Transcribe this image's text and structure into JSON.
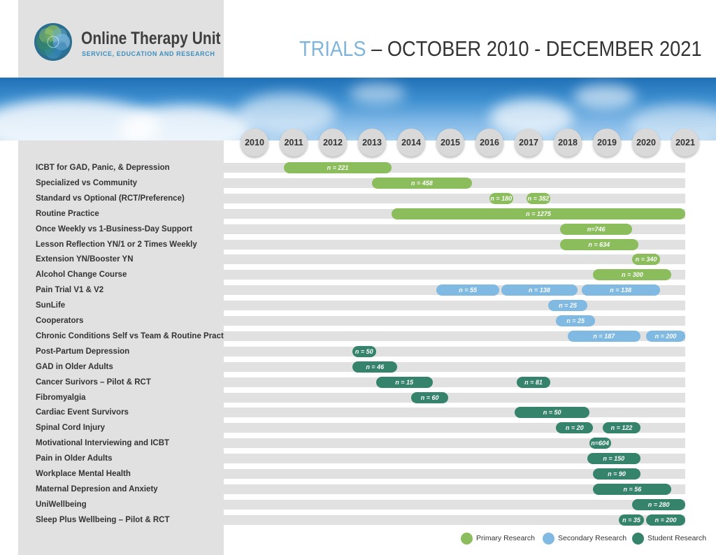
{
  "header": {
    "logo_name": "Online Therapy Unit",
    "logo_sub": "SERVICE, EDUCATION AND RESEARCH",
    "title_accent": "TRIALS",
    "title_rest": " – OCTOBER 2010 - DECEMBER 2021"
  },
  "colors": {
    "primary": "#8bbd5c",
    "secondary": "#80b9e2",
    "student": "#35836a",
    "track": "#e1e1e1",
    "title_accent": "#7fb5dd"
  },
  "chart_data": {
    "type": "gantt",
    "title": "TRIALS – OCTOBER 2010 - DECEMBER 2021",
    "x_axis": {
      "ticks": [
        2010,
        2011,
        2012,
        2013,
        2014,
        2015,
        2016,
        2017,
        2018,
        2019,
        2020,
        2021
      ],
      "range": [
        2010,
        2021
      ]
    },
    "legend": [
      {
        "key": "primary",
        "label": "Primary Research"
      },
      {
        "key": "secondary",
        "label": "Secondary Research"
      },
      {
        "key": "student",
        "label": "Student Research"
      }
    ],
    "legend_position": "bottom-right",
    "rows": [
      {
        "label": "ICBT for GAD, Panic, & Depression",
        "bars": [
          {
            "start": 2010.75,
            "end": 2013.5,
            "n": "n = 221",
            "type": "primary"
          }
        ]
      },
      {
        "label": "Specialized vs Community",
        "bars": [
          {
            "start": 2013.0,
            "end": 2015.55,
            "n": "n = 458",
            "type": "primary"
          }
        ]
      },
      {
        "label": "Standard vs Optional (RCT/Preference)",
        "bars": [
          {
            "start": 2016.0,
            "end": 2016.6,
            "n": "n = 180",
            "type": "primary"
          },
          {
            "start": 2016.95,
            "end": 2017.55,
            "n": "n = 382",
            "type": "primary"
          }
        ]
      },
      {
        "label": "Routine Practice",
        "bars": [
          {
            "start": 2013.5,
            "end": 2021.0,
            "n": "n = 1275",
            "type": "primary"
          }
        ]
      },
      {
        "label": "Once Weekly vs 1-Business-Day Support",
        "bars": [
          {
            "start": 2017.8,
            "end": 2019.65,
            "n": "n=746",
            "type": "primary"
          }
        ]
      },
      {
        "label": "Lesson Reflection YN/1 or 2 Times Weekly",
        "bars": [
          {
            "start": 2017.8,
            "end": 2019.8,
            "n": "n = 634",
            "type": "primary"
          }
        ]
      },
      {
        "label": "Extension YN/Booster YN",
        "bars": [
          {
            "start": 2019.65,
            "end": 2020.35,
            "n": "n = 340",
            "type": "primary"
          }
        ]
      },
      {
        "label": "Alcohol Change Course",
        "bars": [
          {
            "start": 2018.65,
            "end": 2020.65,
            "n": "n = 300",
            "type": "primary"
          }
        ]
      },
      {
        "label": "Pain Trial V1 & V2",
        "bars": [
          {
            "start": 2014.65,
            "end": 2016.25,
            "n": "n = 55",
            "type": "secondary"
          },
          {
            "start": 2016.3,
            "end": 2018.25,
            "n": "n = 138",
            "type": "secondary"
          },
          {
            "start": 2018.35,
            "end": 2020.35,
            "n": "n = 138",
            "type": "secondary"
          }
        ]
      },
      {
        "label": "SunLife",
        "bars": [
          {
            "start": 2017.5,
            "end": 2018.5,
            "n": "n = 25",
            "type": "secondary"
          }
        ]
      },
      {
        "label": "Cooperators",
        "bars": [
          {
            "start": 2017.7,
            "end": 2018.7,
            "n": "n = 25",
            "type": "secondary"
          }
        ]
      },
      {
        "label": "Chronic Conditions Self vs Team & Routine Practice",
        "bars": [
          {
            "start": 2018.0,
            "end": 2019.85,
            "n": "n = 187",
            "type": "secondary"
          },
          {
            "start": 2020.0,
            "end": 2021.0,
            "n": "n = 200",
            "type": "secondary"
          }
        ]
      },
      {
        "label": "Post-Partum Depression",
        "bars": [
          {
            "start": 2012.5,
            "end": 2013.1,
            "n": "n = 50",
            "type": "student"
          }
        ]
      },
      {
        "label": "GAD in Older Adults",
        "bars": [
          {
            "start": 2012.5,
            "end": 2013.65,
            "n": "n = 46",
            "type": "student"
          }
        ]
      },
      {
        "label": "Cancer Surivors – Pilot & RCT",
        "bars": [
          {
            "start": 2013.1,
            "end": 2014.55,
            "n": "n = 15",
            "type": "student"
          },
          {
            "start": 2016.7,
            "end": 2017.55,
            "n": "n = 81",
            "type": "student"
          }
        ]
      },
      {
        "label": "Fibromyalgia",
        "bars": [
          {
            "start": 2014.0,
            "end": 2014.95,
            "n": "n = 60",
            "type": "student"
          }
        ]
      },
      {
        "label": "Cardiac Event Survivors",
        "bars": [
          {
            "start": 2016.65,
            "end": 2018.55,
            "n": "n = 50",
            "type": "student"
          }
        ]
      },
      {
        "label": "Spinal Cord Injury",
        "bars": [
          {
            "start": 2017.7,
            "end": 2018.65,
            "n": "n = 20",
            "type": "student"
          },
          {
            "start": 2018.9,
            "end": 2019.85,
            "n": "n = 122",
            "type": "student"
          }
        ]
      },
      {
        "label": "Motivational Interviewing and ICBT",
        "bars": [
          {
            "start": 2018.55,
            "end": 2019.1,
            "n": "n=604",
            "type": "student"
          }
        ]
      },
      {
        "label": "Pain in Older Adults",
        "bars": [
          {
            "start": 2018.5,
            "end": 2019.85,
            "n": "n = 150",
            "type": "student"
          }
        ]
      },
      {
        "label": "Workplace Mental Health",
        "bars": [
          {
            "start": 2018.65,
            "end": 2019.85,
            "n": "n = 90",
            "type": "student"
          }
        ]
      },
      {
        "label": "Maternal Depresion and Anxiety",
        "bars": [
          {
            "start": 2018.65,
            "end": 2020.65,
            "n": "n = 56",
            "type": "student"
          }
        ]
      },
      {
        "label": "UniWellbeing",
        "bars": [
          {
            "start": 2019.65,
            "end": 2021.0,
            "n": "n = 280",
            "type": "student"
          }
        ]
      },
      {
        "label": "Sleep Plus Wellbeing – Pilot & RCT",
        "bars": [
          {
            "start": 2019.3,
            "end": 2019.95,
            "n": "n = 35",
            "type": "student"
          },
          {
            "start": 2020.0,
            "end": 2021.0,
            "n": "n = 200",
            "type": "student"
          }
        ]
      }
    ]
  }
}
